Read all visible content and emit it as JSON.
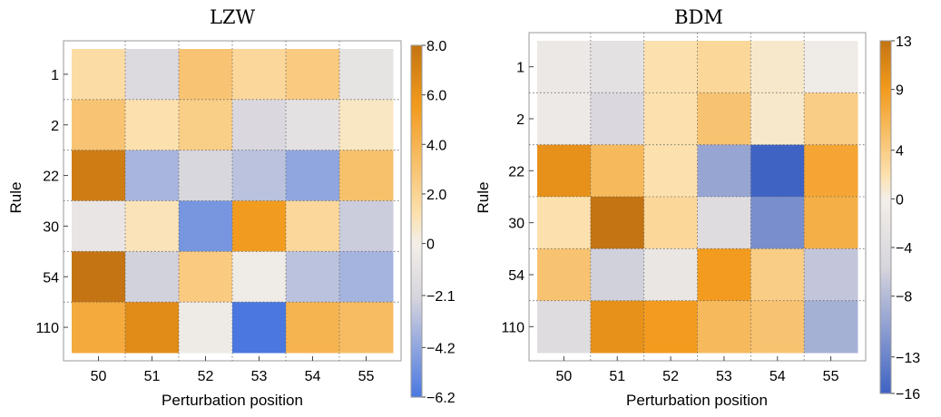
{
  "chart_data": [
    {
      "type": "heatmap",
      "title": "LZW",
      "xlabel": "Perturbation position",
      "ylabel": "Rule",
      "x_categories": [
        "50",
        "51",
        "52",
        "53",
        "54",
        "55"
      ],
      "y_categories": [
        "1",
        "2",
        "22",
        "30",
        "54",
        "110"
      ],
      "values": [
        [
          1.5,
          -1.8,
          3.0,
          1.8,
          2.6,
          -1.0
        ],
        [
          3.0,
          1.2,
          2.4,
          -1.9,
          -1.2,
          0.8
        ],
        [
          7.5,
          -3.5,
          -2.0,
          -3.0,
          -4.2,
          3.2
        ],
        [
          -0.8,
          1.0,
          -4.9,
          5.5,
          1.8,
          -2.5
        ],
        [
          8.0,
          -2.3,
          2.6,
          -0.3,
          -3.0,
          -3.6
        ],
        [
          4.6,
          6.5,
          -0.4,
          -6.2,
          4.0,
          3.5
        ]
      ],
      "colorbar": {
        "range": [
          -6.2,
          8.0
        ],
        "tick_labels": [
          "8.0",
          "6.0",
          "4.0",
          "2.0",
          "0",
          "−2.1",
          "−4.2",
          "−6.2"
        ],
        "tick_values": [
          8.0,
          6.0,
          4.0,
          2.0,
          0,
          -2.1,
          -4.2,
          -6.2
        ]
      },
      "colors": {
        "positive": "#c47412",
        "mid_positive": "#f29a1c",
        "zero": "#f3efe8",
        "neutral": "#d7d5dd",
        "negative": "#4a78e0"
      },
      "grid": true
    },
    {
      "type": "heatmap",
      "title": "BDM",
      "xlabel": "Perturbation position",
      "ylabel": "Rule",
      "x_categories": [
        "50",
        "51",
        "52",
        "53",
        "54",
        "55"
      ],
      "y_categories": [
        "1",
        "2",
        "22",
        "30",
        "54",
        "110"
      ],
      "values": [
        [
          -1.5,
          -3.0,
          2.0,
          3.0,
          1.0,
          -0.8
        ],
        [
          -1.2,
          -5.0,
          2.0,
          5.0,
          1.0,
          4.0
        ],
        [
          10.0,
          6.0,
          2.0,
          -10.0,
          -16.0,
          8.0
        ],
        [
          2.0,
          13.0,
          3.0,
          -4.0,
          -12.0,
          7.0
        ],
        [
          5.0,
          -6.0,
          -2.0,
          9.0,
          4.0,
          -7.0
        ],
        [
          -4.0,
          10.0,
          9.0,
          6.0,
          5.0,
          -9.0
        ]
      ],
      "colorbar": {
        "range": [
          -16,
          13
        ],
        "tick_labels": [
          "13",
          "9",
          "4",
          "0",
          "−4",
          "−8",
          "−13",
          "−16"
        ],
        "tick_values": [
          13,
          9,
          4,
          0,
          -4,
          -8,
          -13,
          -16
        ]
      },
      "colors": {
        "positive": "#c47412",
        "mid_positive": "#f29a1c",
        "zero": "#f3efe8",
        "neutral": "#d7d5dd",
        "negative": "#3f63c3"
      },
      "grid": true
    }
  ]
}
